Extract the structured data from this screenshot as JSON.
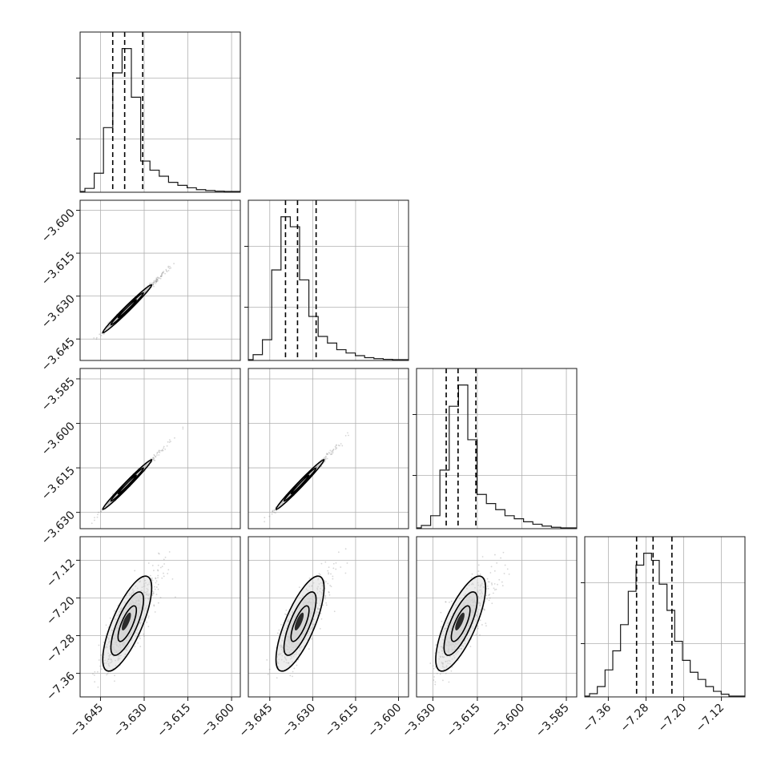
{
  "chart_data": {
    "type": "corner",
    "n_params": 4,
    "grid": true,
    "axes": [
      {
        "range": [
          -3.652,
          -3.597
        ],
        "ticks": [
          -3.645,
          -3.63,
          -3.615,
          -3.6
        ],
        "tick_labels": [
          "−3.645",
          "−3.630",
          "−3.615",
          "−3.600"
        ],
        "quantiles": [
          -3.6408,
          -3.6367,
          -3.6305
        ],
        "hist": [
          1,
          6,
          21,
          39,
          47,
          31,
          10,
          7,
          5,
          3,
          2,
          1.2,
          0.6,
          0.3,
          0.1
        ]
      },
      {
        "range": [
          -3.6525,
          -3.5965
        ],
        "ticks": [
          -3.645,
          -3.63,
          -3.615,
          -3.6
        ],
        "tick_labels": [
          "−3.645",
          "−3.630",
          "−3.615",
          "−3.600"
        ],
        "quantiles": [
          -3.6395,
          -3.6353,
          -3.6288
        ],
        "hist": [
          1.5,
          6,
          27,
          43,
          40,
          24,
          13,
          7,
          5,
          3,
          2,
          1.2,
          0.6,
          0.3,
          0.1
        ]
      },
      {
        "range": [
          -3.6355,
          -3.5815
        ],
        "ticks": [
          -3.63,
          -3.615,
          -3.6,
          -3.585
        ],
        "tick_labels": [
          "−3.630",
          "−3.615",
          "−3.600",
          "−3.585"
        ],
        "quantiles": [
          -3.6255,
          -3.6215,
          -3.6155
        ],
        "hist": [
          0.8,
          4,
          19,
          40,
          47,
          29,
          11,
          8,
          6,
          4,
          3,
          2,
          1.2,
          0.6,
          0.2
        ]
      },
      {
        "range": [
          -7.41,
          -7.07
        ],
        "ticks": [
          -7.36,
          -7.28,
          -7.2,
          -7.12
        ],
        "tick_labels": [
          "−7.36",
          "−7.28",
          "−7.20",
          "−7.12"
        ],
        "quantiles": [
          -7.3,
          -7.265,
          -7.225
        ],
        "hist": [
          1,
          4,
          11,
          19,
          30,
          44,
          55,
          60,
          57,
          47,
          36,
          23,
          15,
          10,
          7,
          4,
          2,
          0.8
        ]
      }
    ],
    "pairs": [
      {
        "xi": 0,
        "yi": 1,
        "mean": [
          -3.6367,
          -3.6353
        ],
        "sd": [
          0.0035,
          0.0035
        ],
        "rho": 0.99
      },
      {
        "xi": 0,
        "yi": 2,
        "mean": [
          -3.6367,
          -3.6215
        ],
        "sd": [
          0.0035,
          0.0035
        ],
        "rho": 0.99
      },
      {
        "xi": 1,
        "yi": 2,
        "mean": [
          -3.6353,
          -3.6215
        ],
        "sd": [
          0.0035,
          0.0035
        ],
        "rho": 0.99
      },
      {
        "xi": 0,
        "yi": 3,
        "mean": [
          -3.6367,
          -7.265
        ],
        "sd": [
          0.0035,
          0.042
        ],
        "rho": 0.75
      },
      {
        "xi": 1,
        "yi": 3,
        "mean": [
          -3.6353,
          -7.265
        ],
        "sd": [
          0.0035,
          0.042
        ],
        "rho": 0.75
      },
      {
        "xi": 2,
        "yi": 3,
        "mean": [
          -3.6215,
          -7.265
        ],
        "sd": [
          0.0035,
          0.042
        ],
        "rho": 0.75
      }
    ]
  }
}
